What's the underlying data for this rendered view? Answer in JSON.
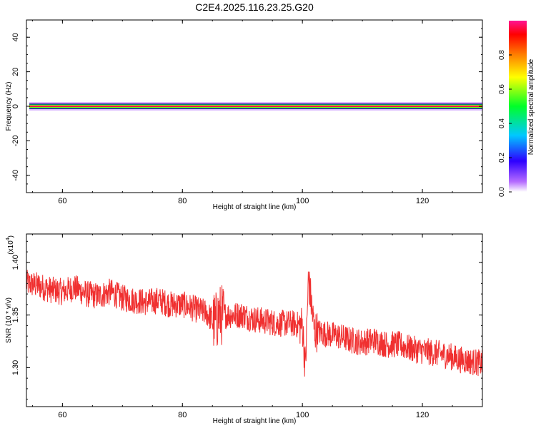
{
  "title": "C2E4.2025.116.23.25.G20",
  "chart_data": [
    {
      "type": "heatmap",
      "xlabel": "Height of straight line (km)",
      "ylabel": "Frequency (Hz)",
      "xlim": [
        54,
        130
      ],
      "ylim": [
        -50,
        50
      ],
      "xticks": [
        60,
        80,
        100,
        120
      ],
      "yticks": [
        40,
        20,
        0,
        -20,
        -40
      ],
      "band_center_hz": 0,
      "colorbar": {
        "label": "Normalized spectral amplitude",
        "range": [
          0,
          1
        ],
        "ticks": [
          0.0,
          0.2,
          0.4,
          0.6,
          0.8
        ],
        "colors": [
          "#ffffff",
          "#b46bff",
          "#2d00ff",
          "#00c8ff",
          "#00ff28",
          "#ffff00",
          "#ff8000",
          "#ff0000",
          "#ff1493"
        ]
      }
    },
    {
      "type": "line",
      "xlabel": "Height of straight line (km)",
      "ylabel": "SNR (10 * v/v)",
      "multiplier": {
        "base": "(x10",
        "exp": "4",
        "close": ")"
      },
      "xlim": [
        54,
        130
      ],
      "ylim": [
        1.263,
        1.427
      ],
      "xticks": [
        60,
        80,
        100,
        120
      ],
      "yticks": [
        1.3,
        1.35,
        1.4
      ],
      "line_color": "#f03030",
      "series": [
        {
          "x": [
            54,
            56,
            58,
            60,
            62,
            64,
            66,
            68,
            70,
            72,
            74,
            76,
            78,
            80,
            82,
            84,
            85.5,
            86,
            88,
            90,
            92,
            94,
            96,
            98,
            100,
            100.5,
            101,
            101.5,
            102,
            104,
            106,
            108,
            110,
            112,
            114,
            116,
            118,
            120,
            122,
            124,
            126,
            128,
            130
          ],
          "y": [
            1.38,
            1.378,
            1.374,
            1.372,
            1.376,
            1.37,
            1.368,
            1.372,
            1.366,
            1.364,
            1.362,
            1.364,
            1.36,
            1.36,
            1.356,
            1.352,
            1.342,
            1.35,
            1.35,
            1.35,
            1.346,
            1.344,
            1.342,
            1.342,
            1.34,
            1.3,
            1.385,
            1.36,
            1.335,
            1.332,
            1.33,
            1.326,
            1.324,
            1.326,
            1.322,
            1.322,
            1.318,
            1.316,
            1.314,
            1.312,
            1.308,
            1.306,
            1.304
          ]
        }
      ]
    }
  ]
}
